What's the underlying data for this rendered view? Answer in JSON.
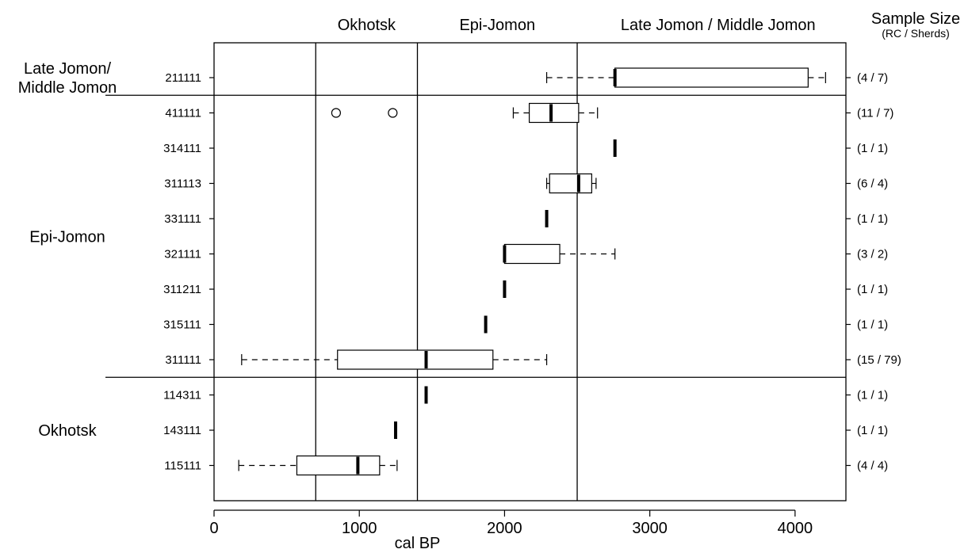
{
  "chart_data": {
    "type": "boxplot",
    "xlabel": "cal BP",
    "xlim": [
      0,
      4350
    ],
    "x_ticks": [
      "0",
      "1000",
      "2000",
      "3000",
      "4000"
    ],
    "x_tick_values": [
      0,
      1000,
      2000,
      3000,
      4000
    ],
    "period_boundaries": [
      700,
      1400,
      2500
    ],
    "period_labels": [
      {
        "label": "Okhotsk",
        "center": 1050
      },
      {
        "label": "Epi-Jomon",
        "center": 1950
      },
      {
        "label": "Late Jomon / Middle Jomon",
        "center": 3470
      }
    ],
    "sample_size_title": "Sample Size",
    "sample_size_subtitle": "(RC / Sherds)",
    "groups": [
      {
        "lines": [
          "Late Jomon/",
          "Middle Jomon"
        ],
        "rows": [
          "211111"
        ]
      },
      {
        "lines": [
          "Epi-Jomon"
        ],
        "rows": [
          "411111",
          "314111",
          "311113",
          "331111",
          "321111",
          "311211",
          "315111",
          "311111"
        ]
      },
      {
        "lines": [
          "Okhotsk"
        ],
        "rows": [
          "114311",
          "143111",
          "115111"
        ]
      }
    ],
    "rows": [
      {
        "category": "211111",
        "sample_size": "(4 / 7)",
        "whisker_low": 2290,
        "q1": 2760,
        "median": 2760,
        "q3": 4090,
        "whisker_high": 4210,
        "outliers": []
      },
      {
        "category": "411111",
        "sample_size": "(11 / 7)",
        "whisker_low": 2060,
        "q1": 2170,
        "median": 2320,
        "q3": 2510,
        "whisker_high": 2640,
        "outliers": [
          840,
          1230
        ]
      },
      {
        "category": "314111",
        "sample_size": "(1 / 1)",
        "whisker_low": 2760,
        "q1": 2760,
        "median": 2760,
        "q3": 2760,
        "whisker_high": 2760,
        "outliers": []
      },
      {
        "category": "311113",
        "sample_size": "(6 / 4)",
        "whisker_low": 2290,
        "q1": 2310,
        "median": 2510,
        "q3": 2600,
        "whisker_high": 2630,
        "outliers": []
      },
      {
        "category": "331111",
        "sample_size": "(1 / 1)",
        "whisker_low": 2290,
        "q1": 2290,
        "median": 2290,
        "q3": 2290,
        "whisker_high": 2290,
        "outliers": []
      },
      {
        "category": "321111",
        "sample_size": "(3 / 2)",
        "whisker_low": 2000,
        "q1": 2000,
        "median": 2000,
        "q3": 2380,
        "whisker_high": 2760,
        "outliers": []
      },
      {
        "category": "311211",
        "sample_size": "(1 / 1)",
        "whisker_low": 2000,
        "q1": 2000,
        "median": 2000,
        "q3": 2000,
        "whisker_high": 2000,
        "outliers": []
      },
      {
        "category": "315111",
        "sample_size": "(1 / 1)",
        "whisker_low": 1870,
        "q1": 1870,
        "median": 1870,
        "q3": 1870,
        "whisker_high": 1870,
        "outliers": []
      },
      {
        "category": "311111",
        "sample_size": "(15 / 79)",
        "whisker_low": 190,
        "q1": 850,
        "median": 1460,
        "q3": 1920,
        "whisker_high": 2290,
        "outliers": []
      },
      {
        "category": "114311",
        "sample_size": "(1 / 1)",
        "whisker_low": 1460,
        "q1": 1460,
        "median": 1460,
        "q3": 1460,
        "whisker_high": 1460,
        "outliers": []
      },
      {
        "category": "143111",
        "sample_size": "(1 / 1)",
        "whisker_low": 1250,
        "q1": 1250,
        "median": 1250,
        "q3": 1250,
        "whisker_high": 1250,
        "outliers": []
      },
      {
        "category": "115111",
        "sample_size": "(4 / 4)",
        "whisker_low": 170,
        "q1": 570,
        "median": 990,
        "q3": 1140,
        "whisker_high": 1260,
        "outliers": []
      }
    ]
  }
}
